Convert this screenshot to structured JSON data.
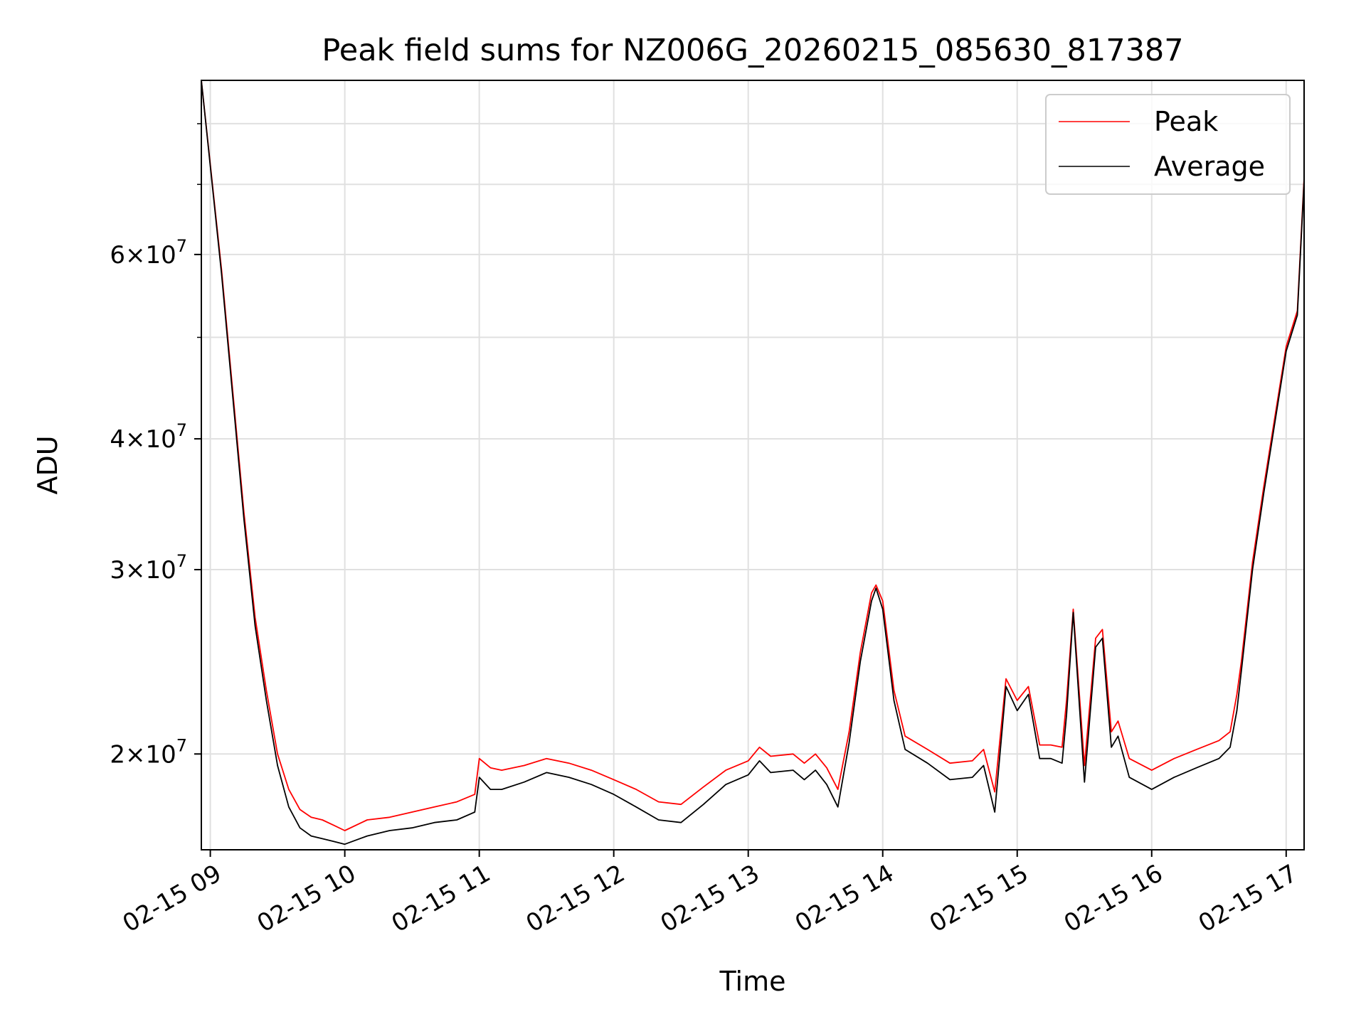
{
  "chart_data": {
    "type": "line",
    "title": "Peak field sums for NZ006G_20260215_085630_817387",
    "xlabel": "Time",
    "ylabel": "ADU",
    "yscale": "log",
    "xlim": [
      "2026-02-15 08:56",
      "2026-02-15 17:08"
    ],
    "ylim": [
      16200000,
      88000000
    ],
    "grid": true,
    "legend_position": "upper right",
    "x_tick_labels": [
      "02-15 09",
      "02-15 10",
      "02-15 11",
      "02-15 12",
      "02-15 13",
      "02-15 14",
      "02-15 15",
      "02-15 16",
      "02-15 17"
    ],
    "x_ticks": [
      "2026-02-15 09:00",
      "2026-02-15 10:00",
      "2026-02-15 11:00",
      "2026-02-15 12:00",
      "2026-02-15 13:00",
      "2026-02-15 14:00",
      "2026-02-15 15:00",
      "2026-02-15 16:00",
      "2026-02-15 17:00"
    ],
    "y_ticks": [
      {
        "value": 20000000,
        "mantissa": "2",
        "exponent": "7"
      },
      {
        "value": 30000000,
        "mantissa": "3",
        "exponent": "7"
      },
      {
        "value": 40000000,
        "mantissa": "4",
        "exponent": "7"
      },
      {
        "value": 60000000,
        "mantissa": "6",
        "exponent": "7"
      }
    ],
    "y_minor_ticks": [
      50000000,
      70000000,
      80000000
    ],
    "tick_times_sep": "×10",
    "series": [
      {
        "name": "Peak",
        "color": "#ff0000",
        "x": [
          "2026-02-15 08:56",
          "2026-02-15 09:05",
          "2026-02-15 09:15",
          "2026-02-15 09:20",
          "2026-02-15 09:25",
          "2026-02-15 09:30",
          "2026-02-15 09:35",
          "2026-02-15 09:40",
          "2026-02-15 09:45",
          "2026-02-15 09:50",
          "2026-02-15 09:55",
          "2026-02-15 10:00",
          "2026-02-15 10:10",
          "2026-02-15 10:20",
          "2026-02-15 10:30",
          "2026-02-15 10:40",
          "2026-02-15 10:50",
          "2026-02-15 10:58",
          "2026-02-15 11:00",
          "2026-02-15 11:05",
          "2026-02-15 11:10",
          "2026-02-15 11:20",
          "2026-02-15 11:30",
          "2026-02-15 11:40",
          "2026-02-15 11:50",
          "2026-02-15 12:00",
          "2026-02-15 12:10",
          "2026-02-15 12:20",
          "2026-02-15 12:30",
          "2026-02-15 12:40",
          "2026-02-15 12:50",
          "2026-02-15 13:00",
          "2026-02-15 13:05",
          "2026-02-15 13:10",
          "2026-02-15 13:20",
          "2026-02-15 13:25",
          "2026-02-15 13:30",
          "2026-02-15 13:35",
          "2026-02-15 13:40",
          "2026-02-15 13:45",
          "2026-02-15 13:50",
          "2026-02-15 13:55",
          "2026-02-15 13:57",
          "2026-02-15 14:00",
          "2026-02-15 14:05",
          "2026-02-15 14:10",
          "2026-02-15 14:20",
          "2026-02-15 14:30",
          "2026-02-15 14:40",
          "2026-02-15 14:45",
          "2026-02-15 14:50",
          "2026-02-15 14:55",
          "2026-02-15 15:00",
          "2026-02-15 15:05",
          "2026-02-15 15:10",
          "2026-02-15 15:15",
          "2026-02-15 15:20",
          "2026-02-15 15:22",
          "2026-02-15 15:25",
          "2026-02-15 15:30",
          "2026-02-15 15:35",
          "2026-02-15 15:38",
          "2026-02-15 15:42",
          "2026-02-15 15:45",
          "2026-02-15 15:50",
          "2026-02-15 16:00",
          "2026-02-15 16:10",
          "2026-02-15 16:20",
          "2026-02-15 16:30",
          "2026-02-15 16:35",
          "2026-02-15 16:38",
          "2026-02-15 16:40",
          "2026-02-15 16:45",
          "2026-02-15 16:50",
          "2026-02-15 16:55",
          "2026-02-15 17:00",
          "2026-02-15 17:05",
          "2026-02-15 17:08"
        ],
        "y": [
          88000000,
          58000000,
          34000000,
          27000000,
          23000000,
          20000000,
          18500000,
          17700000,
          17400000,
          17300000,
          17100000,
          16900000,
          17300000,
          17400000,
          17600000,
          17800000,
          18000000,
          18300000,
          19800000,
          19400000,
          19300000,
          19500000,
          19800000,
          19600000,
          19300000,
          18900000,
          18500000,
          18000000,
          17900000,
          18600000,
          19300000,
          19700000,
          20300000,
          19900000,
          20000000,
          19600000,
          20000000,
          19400000,
          18500000,
          21000000,
          25000000,
          28500000,
          29000000,
          28000000,
          23000000,
          20800000,
          20200000,
          19600000,
          19700000,
          20200000,
          18400000,
          23600000,
          22500000,
          23200000,
          20400000,
          20400000,
          20300000,
          22500000,
          27500000,
          19500000,
          25800000,
          26300000,
          21000000,
          21500000,
          19800000,
          19300000,
          19800000,
          20200000,
          20600000,
          21000000,
          22800000,
          24500000,
          30500000,
          36000000,
          42000000,
          49000000,
          53000000,
          71000000
        ]
      },
      {
        "name": "Average",
        "color": "#000000",
        "x": [
          "2026-02-15 08:56",
          "2026-02-15 09:05",
          "2026-02-15 09:15",
          "2026-02-15 09:20",
          "2026-02-15 09:25",
          "2026-02-15 09:30",
          "2026-02-15 09:35",
          "2026-02-15 09:40",
          "2026-02-15 09:45",
          "2026-02-15 09:50",
          "2026-02-15 09:55",
          "2026-02-15 10:00",
          "2026-02-15 10:10",
          "2026-02-15 10:20",
          "2026-02-15 10:30",
          "2026-02-15 10:40",
          "2026-02-15 10:50",
          "2026-02-15 10:58",
          "2026-02-15 11:00",
          "2026-02-15 11:05",
          "2026-02-15 11:10",
          "2026-02-15 11:20",
          "2026-02-15 11:30",
          "2026-02-15 11:40",
          "2026-02-15 11:50",
          "2026-02-15 12:00",
          "2026-02-15 12:10",
          "2026-02-15 12:20",
          "2026-02-15 12:30",
          "2026-02-15 12:40",
          "2026-02-15 12:50",
          "2026-02-15 13:00",
          "2026-02-15 13:05",
          "2026-02-15 13:10",
          "2026-02-15 13:20",
          "2026-02-15 13:25",
          "2026-02-15 13:30",
          "2026-02-15 13:35",
          "2026-02-15 13:40",
          "2026-02-15 13:45",
          "2026-02-15 13:50",
          "2026-02-15 13:55",
          "2026-02-15 13:57",
          "2026-02-15 14:00",
          "2026-02-15 14:05",
          "2026-02-15 14:10",
          "2026-02-15 14:20",
          "2026-02-15 14:30",
          "2026-02-15 14:40",
          "2026-02-15 14:45",
          "2026-02-15 14:50",
          "2026-02-15 14:55",
          "2026-02-15 15:00",
          "2026-02-15 15:05",
          "2026-02-15 15:10",
          "2026-02-15 15:15",
          "2026-02-15 15:20",
          "2026-02-15 15:22",
          "2026-02-15 15:25",
          "2026-02-15 15:30",
          "2026-02-15 15:35",
          "2026-02-15 15:38",
          "2026-02-15 15:42",
          "2026-02-15 15:45",
          "2026-02-15 15:50",
          "2026-02-15 16:00",
          "2026-02-15 16:10",
          "2026-02-15 16:20",
          "2026-02-15 16:30",
          "2026-02-15 16:35",
          "2026-02-15 16:38",
          "2026-02-15 16:40",
          "2026-02-15 16:45",
          "2026-02-15 16:50",
          "2026-02-15 16:55",
          "2026-02-15 17:00",
          "2026-02-15 17:05",
          "2026-02-15 17:08"
        ],
        "y": [
          88000000,
          57500000,
          33500000,
          26500000,
          22500000,
          19500000,
          17800000,
          17000000,
          16700000,
          16600000,
          16500000,
          16400000,
          16700000,
          16900000,
          17000000,
          17200000,
          17300000,
          17600000,
          19000000,
          18500000,
          18500000,
          18800000,
          19200000,
          19000000,
          18700000,
          18300000,
          17800000,
          17300000,
          17200000,
          17900000,
          18700000,
          19100000,
          19700000,
          19200000,
          19300000,
          18900000,
          19300000,
          18700000,
          17800000,
          20500000,
          24500000,
          28000000,
          28800000,
          27500000,
          22500000,
          20200000,
          19600000,
          18900000,
          19000000,
          19500000,
          17600000,
          23200000,
          22000000,
          22800000,
          19800000,
          19800000,
          19600000,
          21800000,
          27300000,
          18800000,
          25300000,
          25800000,
          20300000,
          20800000,
          19000000,
          18500000,
          19000000,
          19400000,
          19800000,
          20300000,
          22000000,
          24000000,
          30000000,
          35500000,
          41500000,
          48500000,
          52500000,
          70500000
        ]
      }
    ]
  }
}
